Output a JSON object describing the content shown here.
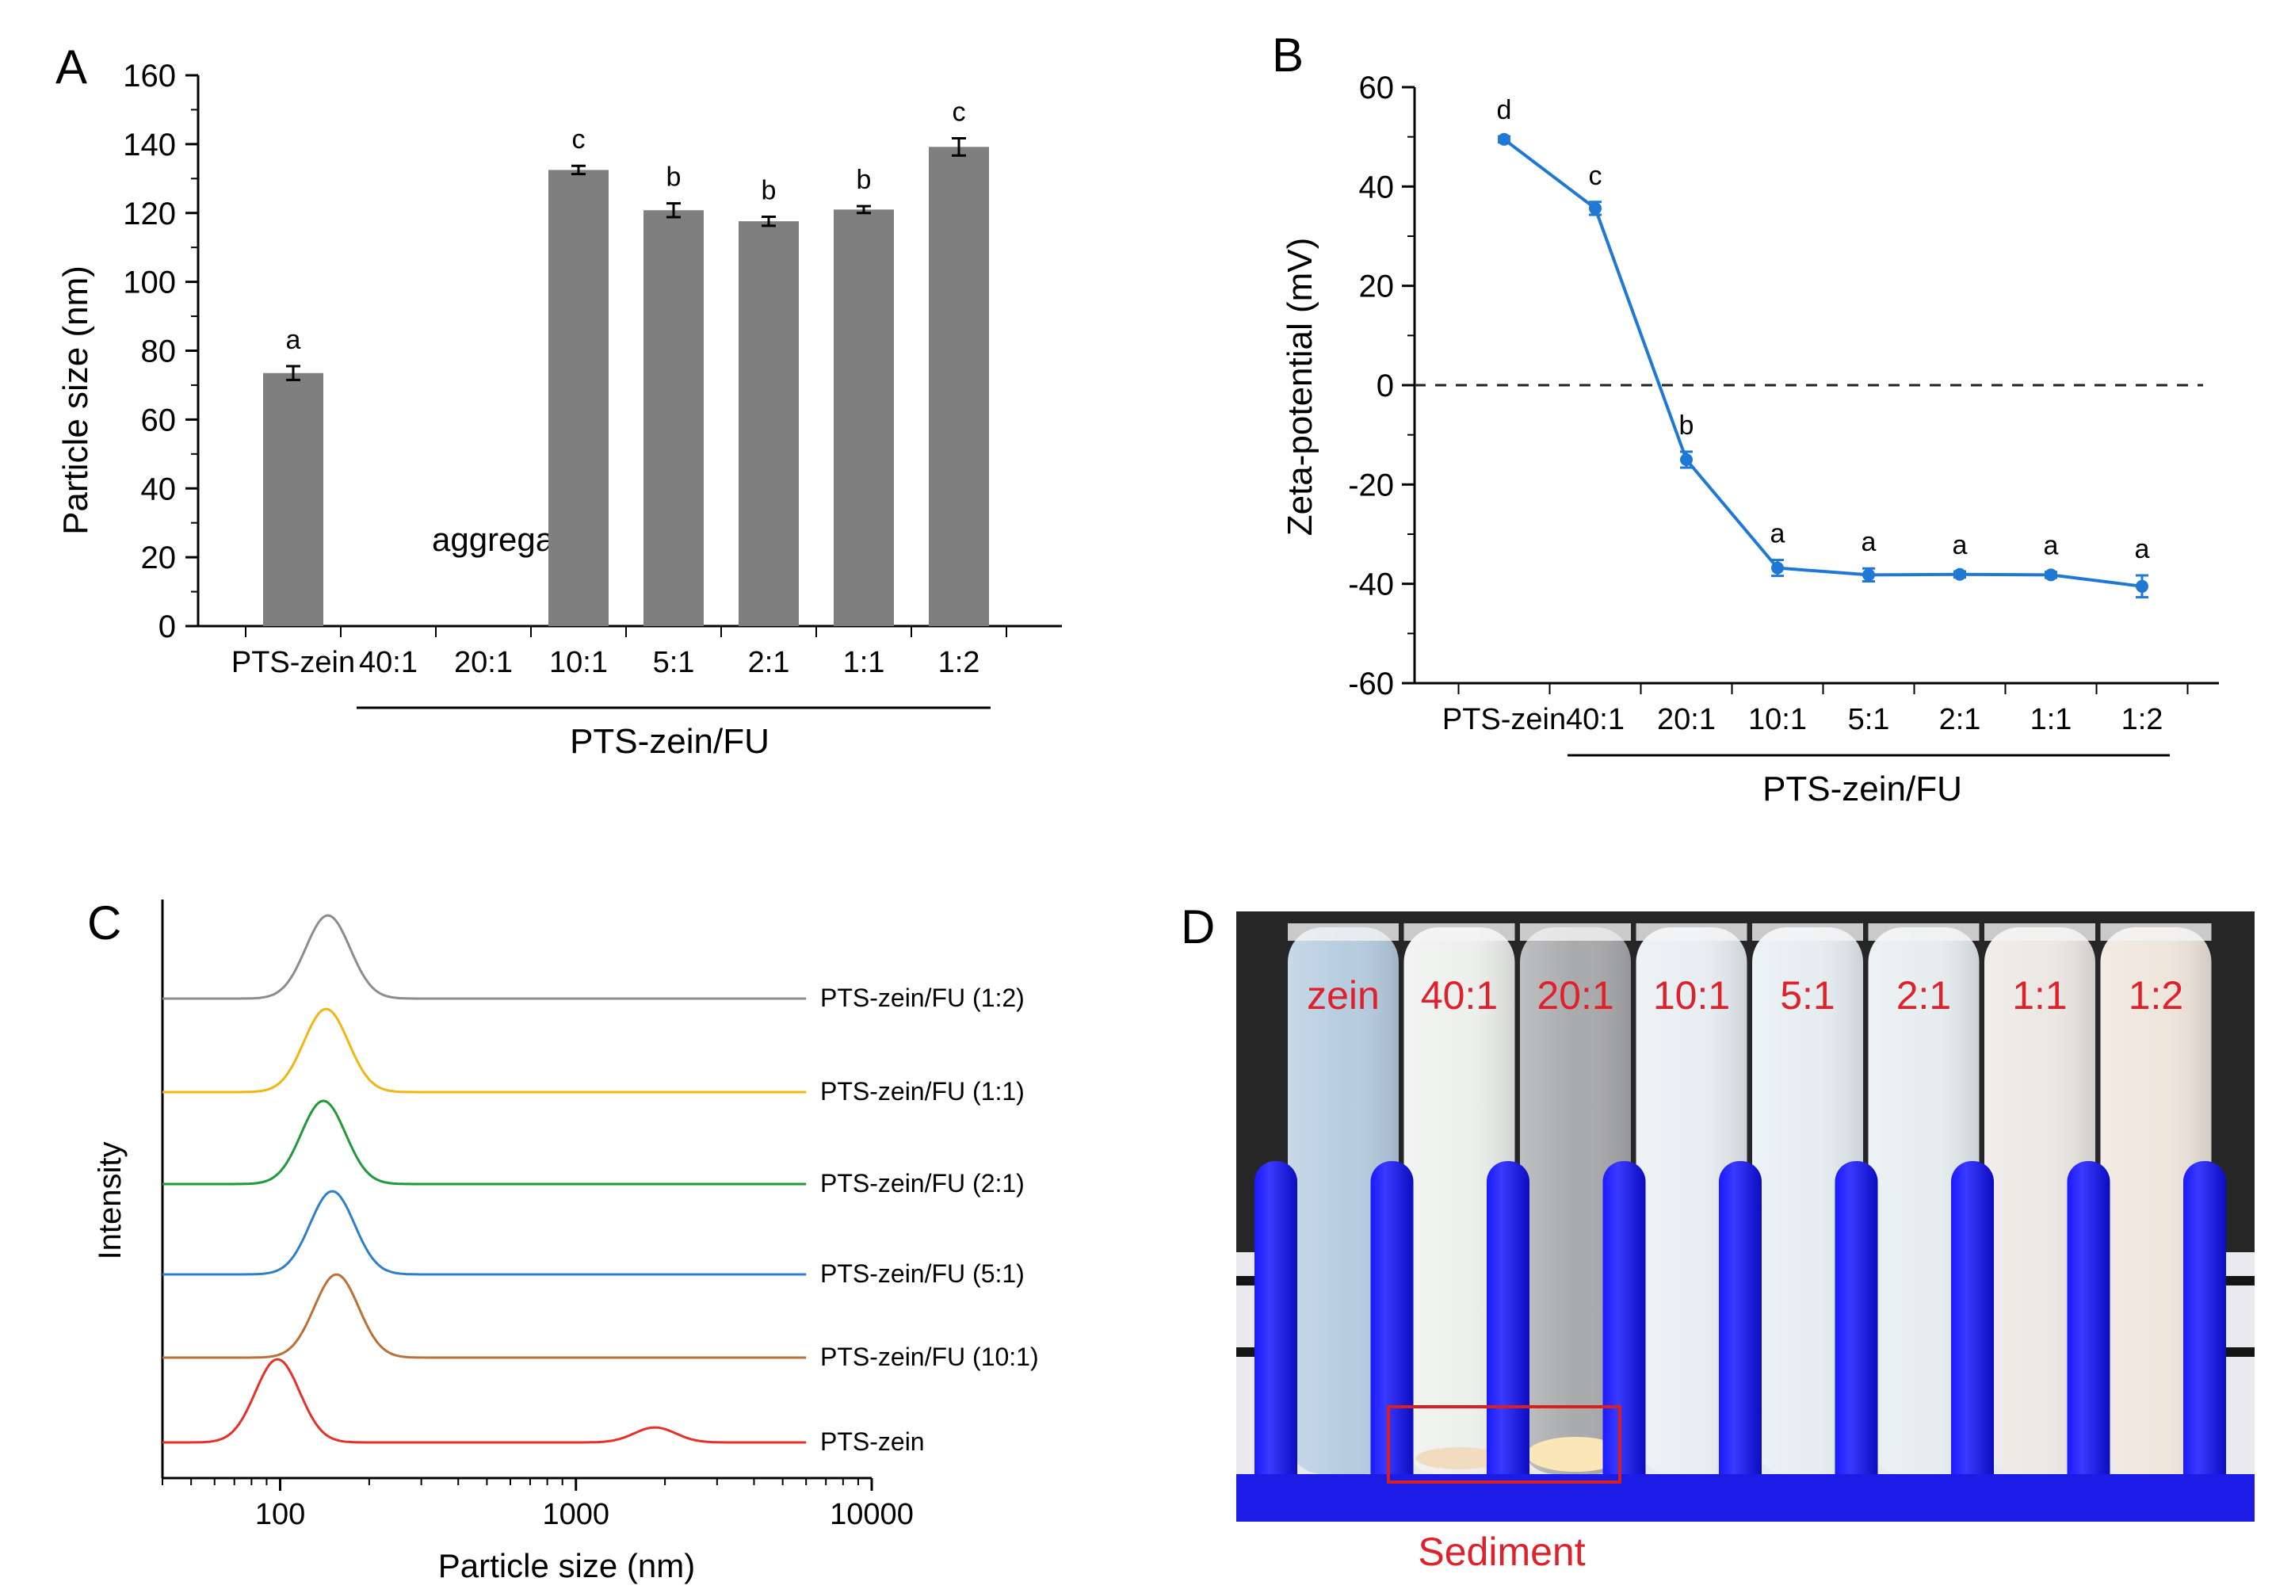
{
  "chart_data": [
    {
      "panel": "A",
      "type": "bar",
      "ylabel": "Particle size (nm)",
      "ylim": [
        0,
        160
      ],
      "yticks": [
        0,
        20,
        40,
        60,
        80,
        100,
        120,
        140,
        160
      ],
      "categories": [
        "PTS-zein",
        "40:1",
        "20:1",
        "10:1",
        "5:1",
        "2:1",
        "1:1",
        "1:2"
      ],
      "values": [
        73.5,
        null,
        null,
        132.5,
        120.8,
        117.6,
        121.0,
        139.2
      ],
      "errors": [
        2.0,
        null,
        null,
        1.2,
        2.0,
        1.3,
        1.0,
        2.5
      ],
      "letters": [
        "a",
        "",
        "",
        "c",
        "b",
        "b",
        "b",
        "c"
      ],
      "annotation": "aggregation",
      "group_label": "PTS-zein/FU",
      "bar_color": "#7f7f7f"
    },
    {
      "panel": "B",
      "type": "line",
      "ylabel": "Zeta-potential (mV)",
      "ylim": [
        -60,
        60
      ],
      "yticks": [
        -60,
        -40,
        -20,
        0,
        20,
        40,
        60
      ],
      "categories": [
        "PTS-zein",
        "40:1",
        "20:1",
        "10:1",
        "5:1",
        "2:1",
        "1:1",
        "1:2"
      ],
      "values": [
        49.5,
        35.6,
        -15.0,
        -36.8,
        -38.2,
        -38.1,
        -38.2,
        -40.5
      ],
      "errors": [
        0.6,
        1.3,
        1.6,
        1.6,
        1.3,
        0.6,
        0.6,
        2.2
      ],
      "letters": [
        "d",
        "c",
        "b",
        "a",
        "a",
        "a",
        "a",
        "a"
      ],
      "reference_line": 0,
      "group_label": "PTS-zein/FU",
      "line_color": "#1f78d4"
    },
    {
      "panel": "C",
      "type": "line",
      "xlabel": "Particle size (nm)",
      "ylabel": "Intensity",
      "xscale": "log",
      "xlim": [
        40,
        10000
      ],
      "xticks": [
        100,
        1000,
        10000
      ],
      "series": [
        {
          "name": "PTS-zein",
          "color": "#e8302a",
          "peaks": [
            {
              "center": 98,
              "height": 1.0
            },
            {
              "center": 1850,
              "height": 0.18
            }
          ]
        },
        {
          "name": "PTS-zein/FU (10:1)",
          "color": "#b9703a",
          "peaks": [
            {
              "center": 155,
              "height": 1.0
            }
          ]
        },
        {
          "name": "PTS-zein/FU (5:1)",
          "color": "#2f7fc8",
          "peaks": [
            {
              "center": 150,
              "height": 1.0
            }
          ]
        },
        {
          "name": "PTS-zein/FU (2:1)",
          "color": "#1f9a3a",
          "peaks": [
            {
              "center": 140,
              "height": 1.0
            }
          ]
        },
        {
          "name": "PTS-zein/FU (1:1)",
          "color": "#f2b511",
          "peaks": [
            {
              "center": 143,
              "height": 1.0
            }
          ]
        },
        {
          "name": "PTS-zein/FU (1:2)",
          "color": "#8c8c8c",
          "peaks": [
            {
              "center": 145,
              "height": 1.0
            }
          ]
        }
      ]
    }
  ],
  "photo": {
    "panel": "D",
    "tube_labels": [
      "zein",
      "40:1",
      "20:1",
      "10:1",
      "5:1",
      "2:1",
      "1:1",
      "1:2"
    ],
    "sediment_label": "Sediment",
    "label_color": "#e0202a"
  },
  "panel_labels": [
    "A",
    "B",
    "C",
    "D"
  ]
}
